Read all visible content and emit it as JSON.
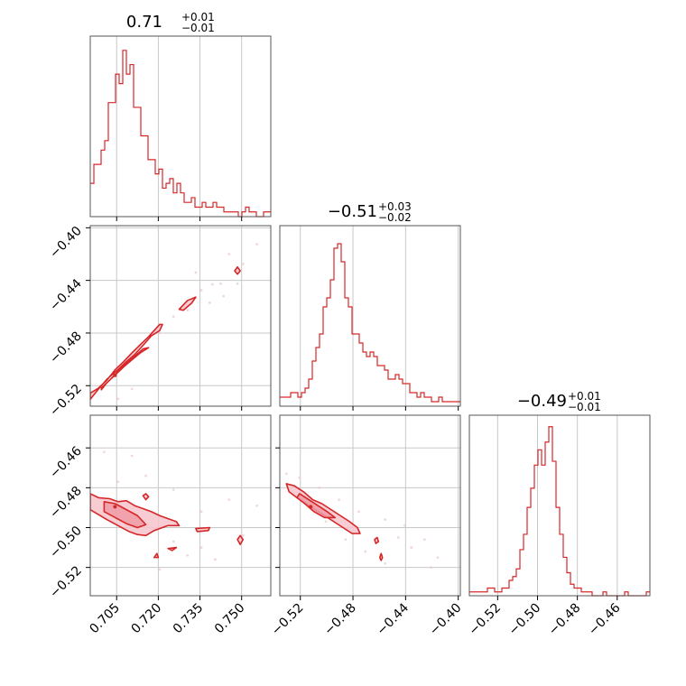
{
  "chart_data": [
    {
      "type": "corner",
      "color": "#d62728",
      "grid": true,
      "parameters": [
        {
          "title_main": "0.71",
          "title_plus": "+0.01",
          "title_minus": "−0.01",
          "range": [
            0.6955,
            0.7605
          ],
          "ticks": [
            0.705,
            0.72,
            0.735,
            0.75
          ],
          "tick_labels": [
            "0.705",
            "0.720",
            "0.735",
            "0.750"
          ]
        },
        {
          "title_main": "−0.51",
          "title_plus": "+0.03",
          "title_minus": "−0.02",
          "range": [
            -0.5356,
            -0.3984
          ],
          "ticks": [
            -0.52,
            -0.48,
            -0.44,
            -0.4
          ],
          "tick_labels": [
            "−0.52",
            "−0.48",
            "−0.44",
            "−0.40"
          ],
          "row_ticks": [
            -0.52,
            -0.48,
            -0.44,
            -0.4
          ],
          "row_tick_labels": [
            "−0.52",
            "−0.48",
            "−0.44",
            "−0.40"
          ]
        },
        {
          "title_main": "−0.49",
          "title_plus": "+0.01",
          "title_minus": "−0.01",
          "range": [
            -0.5342,
            -0.4436
          ],
          "ticks": [
            -0.52,
            -0.5,
            -0.48,
            -0.46
          ],
          "tick_labels": [
            "−0.52",
            "−0.50",
            "−0.48",
            "−0.46"
          ],
          "row_ticks": [
            -0.52,
            -0.5,
            -0.48,
            -0.46
          ],
          "row_tick_labels": [
            "−0.52",
            "−0.50",
            "−0.48",
            "−0.46"
          ]
        }
      ]
    },
    {
      "type": "histogram",
      "param": 0,
      "bins": [
        0.6955,
        0.7605
      ],
      "counts": [
        7,
        11,
        11,
        14,
        16,
        24,
        24,
        30,
        28,
        35,
        30,
        32,
        23,
        23,
        17,
        17,
        12,
        12,
        9,
        10,
        6,
        7,
        8,
        5,
        7,
        5,
        3,
        3,
        4,
        2,
        2,
        3,
        2,
        2,
        3,
        2,
        2,
        1,
        1,
        1,
        1,
        0,
        1,
        2,
        1,
        1,
        0,
        0,
        1,
        1
      ],
      "ymax": 38
    },
    {
      "type": "histogram",
      "param": 1,
      "bins": [
        -0.5356,
        -0.3984
      ],
      "counts": [
        2,
        2,
        2,
        3,
        3,
        2,
        3,
        4,
        6,
        10,
        13,
        16,
        22,
        24,
        28,
        35,
        36,
        32,
        24,
        22,
        16,
        16,
        14,
        12,
        11,
        12,
        11,
        9,
        9,
        8,
        6,
        6,
        7,
        6,
        5,
        5,
        3,
        3,
        2,
        3,
        2,
        2,
        1,
        1,
        2,
        1,
        1,
        1,
        1,
        1
      ],
      "ymax": 40
    },
    {
      "type": "histogram",
      "param": 2,
      "bins": [
        -0.5342,
        -0.4436
      ],
      "counts": [
        1,
        1,
        1,
        1,
        1,
        2,
        2,
        1,
        1,
        2,
        2,
        4,
        5,
        7,
        12,
        16,
        23,
        28,
        34,
        38,
        34,
        40,
        44,
        35,
        23,
        16,
        10,
        6,
        3,
        2,
        2,
        1,
        1,
        1,
        0,
        0,
        0,
        1,
        0,
        0,
        0,
        0,
        0,
        1,
        0,
        0,
        0,
        0,
        0,
        1
      ],
      "ymax": 47
    },
    {
      "type": "contour",
      "x_param": 0,
      "y_param": 1,
      "center": [
        0.7044,
        -0.5121
      ],
      "contours": [
        [
          [
            0.6955,
            -0.5257
          ],
          [
            0.6985,
            -0.5218
          ],
          [
            0.7015,
            -0.5158
          ],
          [
            0.7045,
            -0.5078
          ],
          [
            0.7075,
            -0.5018
          ],
          [
            0.7105,
            -0.4951
          ],
          [
            0.7135,
            -0.4888
          ],
          [
            0.7165,
            -0.4828
          ],
          [
            0.7185,
            -0.4781
          ],
          [
            0.7205,
            -0.4735
          ],
          [
            0.7215,
            -0.4735
          ],
          [
            0.7205,
            -0.4781
          ],
          [
            0.7175,
            -0.4821
          ],
          [
            0.7145,
            -0.4894
          ],
          [
            0.7115,
            -0.4964
          ],
          [
            0.7085,
            -0.5018
          ],
          [
            0.7055,
            -0.5078
          ],
          [
            0.7015,
            -0.5151
          ],
          [
            0.6985,
            -0.5225
          ],
          [
            0.6955,
            -0.5304
          ]
        ],
        [
          [
            0.6995,
            -0.5218
          ],
          [
            0.7025,
            -0.5158
          ],
          [
            0.7055,
            -0.5091
          ],
          [
            0.7085,
            -0.5031
          ],
          [
            0.7115,
            -0.4978
          ],
          [
            0.7145,
            -0.4921
          ],
          [
            0.7165,
            -0.4911
          ],
          [
            0.7135,
            -0.4951
          ],
          [
            0.7105,
            -0.5004
          ],
          [
            0.7075,
            -0.5058
          ],
          [
            0.7045,
            -0.5118
          ],
          [
            0.7015,
            -0.5178
          ],
          [
            0.6995,
            -0.5231
          ]
        ],
        [
          [
            0.7275,
            -0.462
          ],
          [
            0.7305,
            -0.4553
          ],
          [
            0.7335,
            -0.4527
          ],
          [
            0.732,
            -0.4573
          ],
          [
            0.729,
            -0.4627
          ]
        ],
        [
          [
            0.7475,
            -0.4328
          ],
          [
            0.7485,
            -0.4298
          ],
          [
            0.7495,
            -0.4328
          ],
          [
            0.7485,
            -0.4353
          ]
        ]
      ],
      "scatter": [
        [
          0.7205,
          -0.48
        ],
        [
          0.7255,
          -0.4675
        ],
        [
          0.7305,
          -0.4625
        ],
        [
          0.7355,
          -0.4475
        ],
        [
          0.7395,
          -0.443
        ],
        [
          0.7425,
          -0.4425
        ],
        [
          0.7485,
          -0.4425
        ],
        [
          0.7555,
          -0.4125
        ],
        [
          0.7505,
          -0.4275
        ],
        [
          0.7155,
          -0.4925
        ],
        [
          0.7385,
          -0.457
        ],
        [
          0.7435,
          -0.452
        ],
        [
          0.7335,
          -0.434
        ],
        [
          0.7455,
          -0.42
        ],
        [
          0.7105,
          -0.5225
        ],
        [
          0.7055,
          -0.53
        ]
      ]
    },
    {
      "type": "contour",
      "x_param": 0,
      "y_param": 2,
      "center": [
        0.7044,
        -0.4895
      ],
      "contours": [
        [
          [
            0.6955,
            -0.483
          ],
          [
            0.6985,
            -0.485
          ],
          [
            0.7025,
            -0.4855
          ],
          [
            0.7055,
            -0.487
          ],
          [
            0.7085,
            -0.4865
          ],
          [
            0.7115,
            -0.489
          ],
          [
            0.7145,
            -0.4905
          ],
          [
            0.7175,
            -0.492
          ],
          [
            0.7205,
            -0.494
          ],
          [
            0.7235,
            -0.4955
          ],
          [
            0.7265,
            -0.497
          ],
          [
            0.7275,
            -0.499
          ],
          [
            0.7235,
            -0.499
          ],
          [
            0.7185,
            -0.5015
          ],
          [
            0.7155,
            -0.504
          ],
          [
            0.7125,
            -0.5035
          ],
          [
            0.7095,
            -0.502
          ],
          [
            0.7055,
            -0.499
          ],
          [
            0.7015,
            -0.496
          ],
          [
            0.6985,
            -0.4935
          ],
          [
            0.6955,
            -0.491
          ]
        ],
        [
          [
            0.7005,
            -0.487
          ],
          [
            0.7045,
            -0.488
          ],
          [
            0.7085,
            -0.491
          ],
          [
            0.7125,
            -0.494
          ],
          [
            0.7155,
            -0.4985
          ],
          [
            0.7125,
            -0.5
          ],
          [
            0.7085,
            -0.498
          ],
          [
            0.7045,
            -0.495
          ],
          [
            0.7005,
            -0.492
          ]
        ],
        [
          [
            0.7145,
            -0.484
          ],
          [
            0.7155,
            -0.483
          ],
          [
            0.7165,
            -0.4845
          ],
          [
            0.7155,
            -0.486
          ]
        ],
        [
          [
            0.7335,
            -0.5005
          ],
          [
            0.7385,
            -0.5
          ],
          [
            0.738,
            -0.5015
          ],
          [
            0.734,
            -0.502
          ]
        ],
        [
          [
            0.7485,
            -0.506
          ],
          [
            0.7495,
            -0.504
          ],
          [
            0.7505,
            -0.506
          ],
          [
            0.7495,
            -0.5085
          ]
        ],
        [
          [
            0.7185,
            -0.515
          ],
          [
            0.7195,
            -0.513
          ],
          [
            0.72,
            -0.515
          ]
        ],
        [
          [
            0.7235,
            -0.5105
          ],
          [
            0.7265,
            -0.51
          ],
          [
            0.725,
            -0.5115
          ]
        ]
      ],
      "scatter": [
        [
          0.7055,
          -0.477
        ],
        [
          0.7155,
          -0.474
        ],
        [
          0.7255,
          -0.481
        ],
        [
          0.7355,
          -0.492
        ],
        [
          0.7455,
          -0.486
        ],
        [
          0.7555,
          -0.489
        ],
        [
          0.7305,
          -0.514
        ],
        [
          0.7205,
          -0.521
        ],
        [
          0.7405,
          -0.516
        ],
        [
          0.7505,
          -0.504
        ],
        [
          0.7105,
          -0.464
        ],
        [
          0.7005,
          -0.462
        ],
        [
          0.7255,
          -0.507
        ],
        [
          0.7355,
          -0.51
        ]
      ]
    },
    {
      "type": "contour",
      "x_param": 1,
      "y_param": 2,
      "center": [
        -0.5121,
        -0.4895
      ],
      "contours": [
        [
          [
            -0.5306,
            -0.478
          ],
          [
            -0.5246,
            -0.479
          ],
          [
            -0.5176,
            -0.482
          ],
          [
            -0.5106,
            -0.486
          ],
          [
            -0.5036,
            -0.488
          ],
          [
            -0.4966,
            -0.491
          ],
          [
            -0.4896,
            -0.494
          ],
          [
            -0.4826,
            -0.497
          ],
          [
            -0.4766,
            -0.5
          ],
          [
            -0.4746,
            -0.503
          ],
          [
            -0.4806,
            -0.503
          ],
          [
            -0.4876,
            -0.5
          ],
          [
            -0.4946,
            -0.497
          ],
          [
            -0.5016,
            -0.494
          ],
          [
            -0.5086,
            -0.491
          ],
          [
            -0.5156,
            -0.488
          ],
          [
            -0.5226,
            -0.485
          ],
          [
            -0.5286,
            -0.482
          ]
        ],
        [
          [
            -0.5206,
            -0.483
          ],
          [
            -0.5136,
            -0.486
          ],
          [
            -0.5066,
            -0.489
          ],
          [
            -0.4996,
            -0.492
          ],
          [
            -0.4936,
            -0.495
          ],
          [
            -0.5016,
            -0.495
          ],
          [
            -0.5096,
            -0.492
          ],
          [
            -0.5166,
            -0.488
          ],
          [
            -0.5226,
            -0.485
          ]
        ],
        [
          [
            -0.4636,
            -0.506
          ],
          [
            -0.4616,
            -0.505
          ],
          [
            -0.4606,
            -0.507
          ],
          [
            -0.4626,
            -0.508
          ]
        ],
        [
          [
            -0.4596,
            -0.515
          ],
          [
            -0.4586,
            -0.513
          ],
          [
            -0.4576,
            -0.515
          ],
          [
            -0.4586,
            -0.5165
          ]
        ]
      ],
      "scatter": [
        [
          -0.5306,
          -0.473
        ],
        [
          -0.5206,
          -0.475
        ],
        [
          -0.5056,
          -0.48
        ],
        [
          -0.4906,
          -0.486
        ],
        [
          -0.4756,
          -0.492
        ],
        [
          -0.4556,
          -0.496
        ],
        [
          -0.4456,
          -0.505
        ],
        [
          -0.4356,
          -0.51
        ],
        [
          -0.4256,
          -0.506
        ],
        [
          -0.4156,
          -0.515
        ],
        [
          -0.4556,
          -0.518
        ],
        [
          -0.4706,
          -0.512
        ],
        [
          -0.4406,
          -0.499
        ],
        [
          -0.4206,
          -0.52
        ],
        [
          -0.5006,
          -0.497
        ],
        [
          -0.4856,
          -0.506
        ]
      ]
    }
  ]
}
